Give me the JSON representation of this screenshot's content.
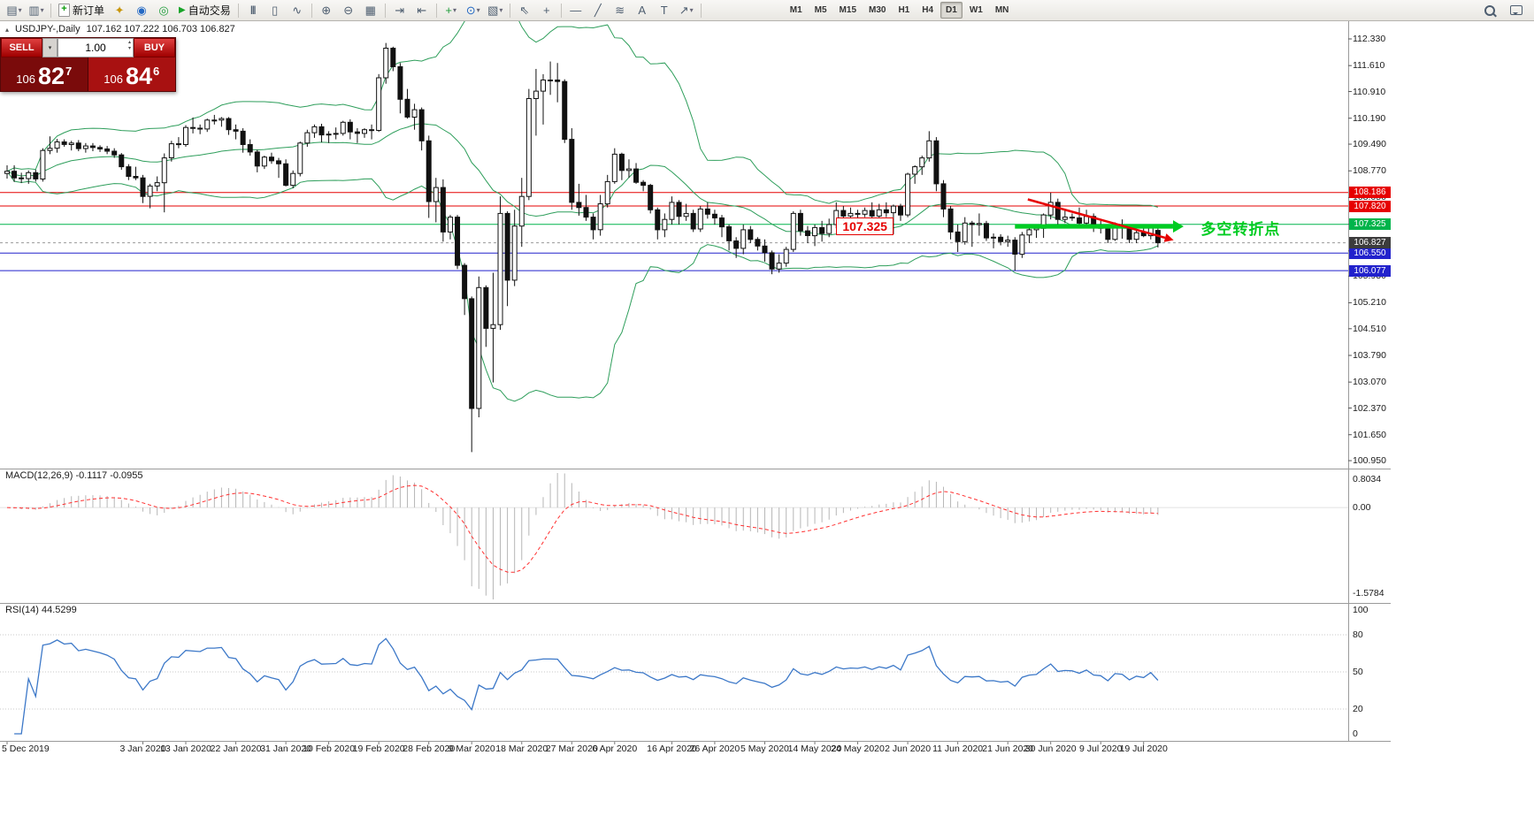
{
  "toolbar": {
    "new_order_label": "新订单",
    "auto_trading_label": "自动交易",
    "timeframes": [
      "M1",
      "M5",
      "M15",
      "M30",
      "H1",
      "H4",
      "D1",
      "W1",
      "MN"
    ],
    "active_timeframe": "D1",
    "icons": {
      "caret": "▾",
      "caret-up": "▴",
      "caret-down": "▾",
      "new-chart": "▤",
      "profiles": "▥",
      "new-order": "+",
      "market-watch": "✦",
      "data-window": "◉",
      "navigator": "◎",
      "auto-trading": "▶",
      "bar-chart": "|||",
      "candle-chart": "▯",
      "line-chart": "∿",
      "zoom-in": "⊕",
      "zoom-out": "⊖",
      "tile-windows": "▦",
      "auto-scroll": "⇥",
      "chart-shift": "⇤",
      "add-indicator": "+",
      "periods": "⊙",
      "templates": "▧",
      "cursor": "⇖",
      "crosshair": "+",
      "hline": "—",
      "trendline": "╱",
      "fibonacci": "≋",
      "text": "A",
      "text-label": "T",
      "arrows": "↗",
      "symbol-marker": "▴"
    }
  },
  "symbol_bar": {
    "title": "USDJPY-,Daily",
    "ohlc": "107.162 107.222 106.703 106.827"
  },
  "trade_panel": {
    "sell_label": "SELL",
    "buy_label": "BUY",
    "volume": "1.00",
    "sell_price": {
      "figure": "106",
      "pips": "82",
      "point": "7"
    },
    "buy_price": {
      "figure": "106",
      "pips": "84",
      "point": "6"
    }
  },
  "chart_data": {
    "type": "candlestick",
    "symbol": "USDJPY-",
    "timeframe": "Daily",
    "price_axis_labels": [
      "112.330",
      "111.610",
      "110.910",
      "110.190",
      "109.490",
      "108.770",
      "108.050",
      "107.330",
      "106.610",
      "105.930",
      "105.210",
      "104.510",
      "103.790",
      "103.070",
      "102.370",
      "101.650",
      "100.950"
    ],
    "date_labels": [
      [
        "5 Dec 2019",
        0
      ],
      [
        "3 Jan 2020",
        19
      ],
      [
        "13 Jan 2020",
        25
      ],
      [
        "22 Jan 2020",
        32
      ],
      [
        "31 Jan 2020",
        39
      ],
      [
        "10 Feb 2020",
        45
      ],
      [
        "19 Feb 2020",
        52
      ],
      [
        "28 Feb 2020",
        59
      ],
      [
        "9 Mar 2020",
        65
      ],
      [
        "18 Mar 2020",
        72
      ],
      [
        "27 Mar 2020",
        79
      ],
      [
        "6 Apr 2020",
        85
      ],
      [
        "16 Apr 2020",
        93
      ],
      [
        "26 Apr 2020",
        99
      ],
      [
        "5 May 2020",
        106
      ],
      [
        "14 May 2020",
        113
      ],
      [
        "24 May 2020",
        119
      ],
      [
        "2 Jun 2020",
        126
      ],
      [
        "11 Jun 2020",
        133
      ],
      [
        "21 Jun 2020",
        140
      ],
      [
        "30 Jun 2020",
        146
      ],
      [
        "9 Jul 2020",
        153
      ],
      [
        "19 Jul 2020",
        159
      ]
    ],
    "bollinger": {
      "period": 20,
      "deviation": 2,
      "color": "#2e9e5b"
    },
    "levels": [
      {
        "price": 108.186,
        "color": "#e60000"
      },
      {
        "price": 107.82,
        "color": "#e60000"
      },
      {
        "price": 107.325,
        "color": "#00b44b"
      },
      {
        "price": 106.55,
        "color": "#2222cc"
      },
      {
        "price": 106.077,
        "color": "#2222cc"
      }
    ],
    "bid": {
      "price": 106.827,
      "color": "#3c3c3c"
    },
    "annotations": {
      "price_box": {
        "text": "107.325",
        "index": 117,
        "price": 107.25,
        "color": "#e60000"
      },
      "turning_text": {
        "text": "多空转折点",
        "index": 167,
        "price": 107.28,
        "color": "#00cc22"
      },
      "red_arrow": {
        "i1": 142.8,
        "p1": 108.0,
        "i2": 163.2,
        "p2": 106.9,
        "color": "#e60000"
      },
      "green_ray": {
        "i1": 141,
        "i2": 164.6,
        "price": 107.27,
        "color": "#00cc22"
      }
    },
    "macd": {
      "label": "MACD(12,26,9) -0.1117 -0.0955",
      "fast": 12,
      "slow": 26,
      "signal": 9,
      "axis_top": "0.8034",
      "axis_zero": "0.00",
      "axis_bottom": "-1.5784",
      "histogram_color": "#b6b6b6",
      "signal_color": "#ff3030"
    },
    "rsi": {
      "label": "RSI(14) 44.5299",
      "period": 14,
      "axis_labels": [
        100,
        80,
        50,
        20,
        0
      ],
      "levels": [
        80,
        50,
        20
      ],
      "color": "#3c78c8"
    },
    "candles": [
      [
        108.7,
        108.92,
        108.56,
        108.76
      ],
      [
        108.76,
        108.92,
        108.47,
        108.58
      ],
      [
        108.58,
        108.72,
        108.44,
        108.56
      ],
      [
        108.56,
        108.78,
        108.42,
        108.72
      ],
      [
        108.72,
        108.8,
        108.48,
        108.55
      ],
      [
        108.55,
        109.38,
        108.48,
        109.32
      ],
      [
        109.32,
        109.7,
        109.22,
        109.38
      ],
      [
        109.38,
        109.63,
        109.26,
        109.55
      ],
      [
        109.55,
        109.62,
        109.42,
        109.48
      ],
      [
        109.48,
        109.58,
        109.32,
        109.52
      ],
      [
        109.52,
        109.6,
        109.3,
        109.37
      ],
      [
        109.37,
        109.52,
        109.26,
        109.44
      ],
      [
        109.44,
        109.52,
        109.3,
        109.4
      ],
      [
        109.4,
        109.46,
        109.28,
        109.36
      ],
      [
        109.36,
        109.44,
        109.22,
        109.3
      ],
      [
        109.3,
        109.38,
        109.12,
        109.2
      ],
      [
        109.2,
        109.25,
        108.8,
        108.88
      ],
      [
        108.88,
        108.95,
        108.52,
        108.62
      ],
      [
        108.62,
        108.88,
        108.52,
        108.58
      ],
      [
        108.58,
        108.66,
        107.9,
        108.08
      ],
      [
        108.08,
        108.42,
        107.76,
        108.36
      ],
      [
        108.36,
        108.62,
        108.22,
        108.45
      ],
      [
        108.45,
        109.24,
        107.65,
        109.12
      ],
      [
        109.12,
        109.58,
        109.02,
        109.5
      ],
      [
        109.5,
        109.68,
        109.38,
        109.48
      ],
      [
        109.48,
        110.0,
        109.42,
        109.94
      ],
      [
        109.94,
        110.21,
        109.78,
        109.92
      ],
      [
        109.92,
        110.02,
        109.76,
        109.9
      ],
      [
        109.9,
        110.18,
        109.82,
        110.14
      ],
      [
        110.14,
        110.28,
        110.02,
        110.14
      ],
      [
        110.14,
        110.22,
        109.96,
        110.18
      ],
      [
        110.18,
        110.22,
        109.74,
        109.88
      ],
      [
        109.88,
        110.02,
        109.62,
        109.84
      ],
      [
        109.84,
        109.92,
        109.26,
        109.48
      ],
      [
        109.48,
        109.62,
        109.18,
        109.28
      ],
      [
        109.28,
        109.34,
        108.73,
        108.9
      ],
      [
        108.9,
        109.18,
        108.82,
        109.14
      ],
      [
        109.14,
        109.26,
        108.96,
        109.04
      ],
      [
        109.04,
        109.12,
        108.58,
        108.96
      ],
      [
        108.96,
        109.08,
        108.35,
        108.38
      ],
      [
        108.38,
        108.78,
        108.3,
        108.7
      ],
      [
        108.7,
        109.56,
        108.62,
        109.52
      ],
      [
        109.52,
        109.88,
        109.42,
        109.8
      ],
      [
        109.8,
        110.02,
        109.66,
        109.96
      ],
      [
        109.96,
        110.04,
        109.54,
        109.74
      ],
      [
        109.74,
        109.84,
        109.52,
        109.76
      ],
      [
        109.76,
        109.94,
        109.62,
        109.78
      ],
      [
        109.78,
        110.12,
        109.72,
        110.08
      ],
      [
        110.08,
        110.16,
        109.62,
        109.82
      ],
      [
        109.82,
        109.92,
        109.52,
        109.78
      ],
      [
        109.78,
        109.92,
        109.66,
        109.88
      ],
      [
        109.88,
        110.02,
        109.62,
        109.86
      ],
      [
        109.86,
        111.38,
        109.82,
        111.28
      ],
      [
        111.28,
        112.22,
        111.12,
        112.08
      ],
      [
        112.08,
        112.12,
        111.46,
        111.58
      ],
      [
        111.58,
        111.68,
        110.32,
        110.7
      ],
      [
        110.7,
        110.98,
        110.18,
        110.22
      ],
      [
        110.22,
        110.58,
        109.88,
        110.42
      ],
      [
        110.42,
        110.48,
        109.32,
        109.58
      ],
      [
        109.58,
        109.72,
        107.5,
        107.94
      ],
      [
        107.94,
        108.58,
        107.38,
        108.32
      ],
      [
        108.32,
        108.54,
        106.86,
        107.12
      ],
      [
        107.12,
        107.58,
        106.92,
        107.52
      ],
      [
        107.52,
        107.58,
        106.12,
        106.22
      ],
      [
        106.22,
        106.28,
        104.88,
        105.32
      ],
      [
        105.32,
        105.38,
        101.18,
        102.36
      ],
      [
        102.36,
        105.92,
        102.12,
        105.62
      ],
      [
        105.62,
        105.68,
        104.02,
        104.52
      ],
      [
        104.52,
        106.02,
        103.06,
        104.62
      ],
      [
        104.62,
        108.08,
        104.48,
        107.62
      ],
      [
        107.62,
        107.68,
        105.12,
        105.82
      ],
      [
        105.82,
        107.72,
        105.66,
        107.28
      ],
      [
        107.28,
        108.58,
        106.72,
        108.08
      ],
      [
        108.08,
        110.98,
        107.98,
        110.72
      ],
      [
        110.72,
        111.52,
        109.72,
        110.92
      ],
      [
        110.92,
        111.38,
        110.02,
        111.22
      ],
      [
        111.22,
        111.72,
        110.82,
        111.22
      ],
      [
        111.22,
        111.68,
        110.62,
        111.18
      ],
      [
        111.18,
        111.24,
        109.52,
        109.62
      ],
      [
        109.62,
        109.92,
        107.72,
        107.92
      ],
      [
        107.92,
        108.42,
        107.56,
        107.78
      ],
      [
        107.78,
        108.12,
        107.42,
        107.52
      ],
      [
        107.52,
        107.62,
        106.92,
        107.18
      ],
      [
        107.18,
        108.12,
        107.02,
        107.88
      ],
      [
        107.88,
        108.66,
        107.78,
        108.48
      ],
      [
        108.48,
        109.38,
        108.42,
        109.22
      ],
      [
        109.22,
        109.26,
        108.52,
        108.78
      ],
      [
        108.78,
        109.08,
        108.58,
        108.82
      ],
      [
        108.82,
        108.98,
        108.42,
        108.46
      ],
      [
        108.46,
        108.52,
        108.22,
        108.38
      ],
      [
        108.38,
        108.42,
        107.62,
        107.72
      ],
      [
        107.72,
        107.78,
        106.92,
        107.18
      ],
      [
        107.18,
        107.62,
        106.98,
        107.46
      ],
      [
        107.46,
        108.08,
        107.32,
        107.92
      ],
      [
        107.92,
        107.98,
        107.32,
        107.54
      ],
      [
        107.54,
        107.88,
        107.42,
        107.62
      ],
      [
        107.62,
        107.72,
        107.12,
        107.2
      ],
      [
        107.2,
        107.82,
        107.12,
        107.74
      ],
      [
        107.74,
        107.92,
        107.48,
        107.6
      ],
      [
        107.6,
        107.72,
        107.32,
        107.5
      ],
      [
        107.5,
        107.58,
        106.98,
        107.26
      ],
      [
        107.26,
        107.32,
        106.62,
        106.88
      ],
      [
        106.88,
        106.98,
        106.42,
        106.68
      ],
      [
        106.68,
        107.32,
        106.52,
        107.18
      ],
      [
        107.18,
        107.28,
        106.82,
        106.92
      ],
      [
        106.92,
        106.98,
        106.62,
        106.74
      ],
      [
        106.74,
        106.92,
        106.32,
        106.56
      ],
      [
        106.56,
        106.62,
        105.98,
        106.12
      ],
      [
        106.12,
        106.52,
        106.02,
        106.28
      ],
      [
        106.28,
        106.72,
        106.18,
        106.65
      ],
      [
        106.65,
        107.68,
        106.58,
        107.62
      ],
      [
        107.62,
        107.72,
        107.02,
        107.15
      ],
      [
        107.15,
        107.28,
        106.82,
        107.02
      ],
      [
        107.02,
        107.32,
        106.74,
        107.24
      ],
      [
        107.24,
        107.42,
        106.86,
        107.08
      ],
      [
        107.08,
        107.48,
        106.98,
        107.32
      ],
      [
        107.32,
        107.92,
        107.22,
        107.7
      ],
      [
        107.7,
        107.82,
        107.42,
        107.55
      ],
      [
        107.55,
        107.78,
        107.46,
        107.62
      ],
      [
        107.62,
        107.72,
        107.32,
        107.6
      ],
      [
        107.6,
        107.78,
        107.52,
        107.7
      ],
      [
        107.7,
        107.92,
        107.42,
        107.55
      ],
      [
        107.55,
        107.88,
        107.46,
        107.72
      ],
      [
        107.72,
        107.92,
        107.52,
        107.64
      ],
      [
        107.64,
        107.86,
        107.06,
        107.82
      ],
      [
        107.82,
        107.88,
        107.42,
        107.58
      ],
      [
        107.58,
        108.72,
        107.52,
        108.68
      ],
      [
        108.68,
        108.92,
        108.42,
        108.88
      ],
      [
        108.88,
        109.18,
        108.66,
        109.12
      ],
      [
        109.12,
        109.84,
        109.02,
        109.58
      ],
      [
        109.58,
        109.68,
        108.22,
        108.42
      ],
      [
        108.42,
        108.52,
        107.52,
        107.74
      ],
      [
        107.74,
        107.82,
        106.92,
        107.12
      ],
      [
        107.12,
        107.32,
        106.58,
        106.86
      ],
      [
        106.86,
        107.52,
        106.78,
        107.36
      ],
      [
        107.36,
        107.42,
        106.72,
        107.32
      ],
      [
        107.32,
        107.62,
        107.02,
        107.35
      ],
      [
        107.35,
        107.42,
        106.88,
        106.96
      ],
      [
        106.96,
        107.08,
        106.68,
        106.98
      ],
      [
        106.98,
        107.06,
        106.76,
        106.86
      ],
      [
        106.86,
        107.02,
        106.72,
        106.9
      ],
      [
        106.9,
        106.98,
        106.08,
        106.52
      ],
      [
        106.52,
        107.12,
        106.42,
        107.04
      ],
      [
        107.04,
        107.26,
        106.82,
        107.18
      ],
      [
        107.18,
        107.32,
        106.96,
        107.22
      ],
      [
        107.22,
        107.62,
        106.96,
        107.58
      ],
      [
        107.58,
        108.18,
        107.46,
        107.92
      ],
      [
        107.92,
        108.02,
        107.32,
        107.46
      ],
      [
        107.46,
        107.72,
        107.36,
        107.52
      ],
      [
        107.52,
        107.62,
        107.42,
        107.5
      ],
      [
        107.5,
        107.78,
        107.28,
        107.36
      ],
      [
        107.36,
        107.72,
        107.22,
        107.54
      ],
      [
        107.54,
        107.62,
        107.12,
        107.26
      ],
      [
        107.26,
        107.42,
        107.08,
        107.22
      ],
      [
        107.22,
        107.28,
        106.82,
        106.92
      ],
      [
        106.92,
        107.38,
        106.88,
        107.28
      ],
      [
        107.28,
        107.46,
        106.94,
        107.24
      ],
      [
        107.24,
        107.32,
        106.82,
        106.92
      ],
      [
        106.92,
        107.18,
        106.82,
        107.1
      ],
      [
        107.1,
        107.28,
        106.98,
        107.02
      ],
      [
        107.02,
        107.32,
        106.92,
        107.26
      ],
      [
        107.162,
        107.222,
        106.703,
        106.827
      ]
    ]
  }
}
